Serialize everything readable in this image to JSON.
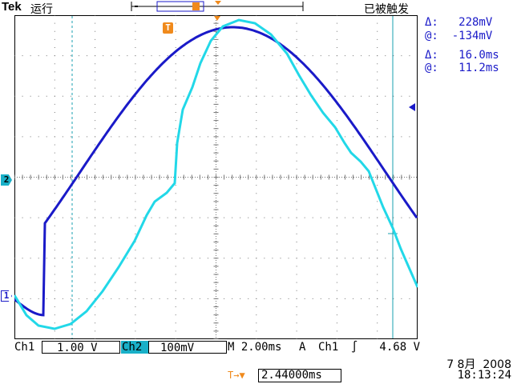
{
  "header": {
    "brand": "Tek",
    "run_state": "运行",
    "trigger_state": "已被触发"
  },
  "cursors": {
    "v_delta": "Δ:   228mV",
    "v_at": "@:  -134mV",
    "t_delta": "Δ:   16.0ms",
    "t_at": "@:   11.2ms"
  },
  "markers": {
    "ch2_marker": "2",
    "ch1_marker": "1",
    "trigger_marker": "T"
  },
  "bottom": {
    "ch1_label": "Ch1",
    "ch1_scale": "1.00 V",
    "ch2_label": "Ch2",
    "ch2_scale": "100mV",
    "timebase": "M 2.00ms",
    "trigger_mode": "A",
    "trigger_source": "Ch1",
    "trigger_slope": "∫",
    "trigger_level": "4.68 V"
  },
  "footer": {
    "delay_icon": "T→▼",
    "delay_value": "2.44000ms",
    "date": "7 8月  2008",
    "time": "18:13:24"
  },
  "colors": {
    "ch1": "#1a1ac8",
    "ch2": "#22d8e8",
    "cursor": "#19a0b0",
    "trigger": "#f08a1c"
  }
}
